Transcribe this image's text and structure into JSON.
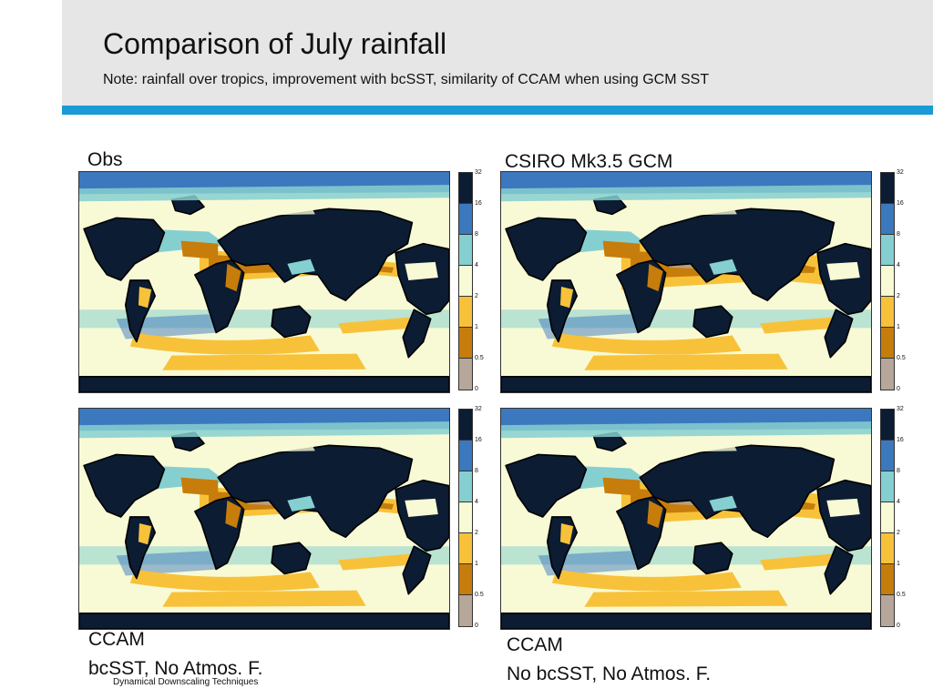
{
  "slide": {
    "title": "Comparison of July rainfall",
    "note": "Note: rainfall over tropics, improvement with bcSST, similarity of CCAM when using GCM SST",
    "footer": "Dynamical Downscaling Techniques"
  },
  "colorbar": {
    "levels": [
      "32",
      "16",
      "8",
      "4",
      "2",
      "1",
      "0.5",
      "0"
    ],
    "colors": [
      "#0b1c33",
      "#3c78bd",
      "#86cfd0",
      "#f8fad6",
      "#f7c23a",
      "#c67d0b",
      "#b6a79a"
    ]
  },
  "panels": [
    {
      "id": "obs",
      "label": "Obs"
    },
    {
      "id": "gcm",
      "label": "CSIRO Mk3.5 GCM"
    },
    {
      "id": "ccam-bcsst",
      "label_line1": "CCAM",
      "label_line2": "bcSST, No Atmos. F."
    },
    {
      "id": "ccam-nobcsst",
      "label_line1": "CCAM",
      "label_line2": "No bcSST, No Atmos. F."
    }
  ]
}
